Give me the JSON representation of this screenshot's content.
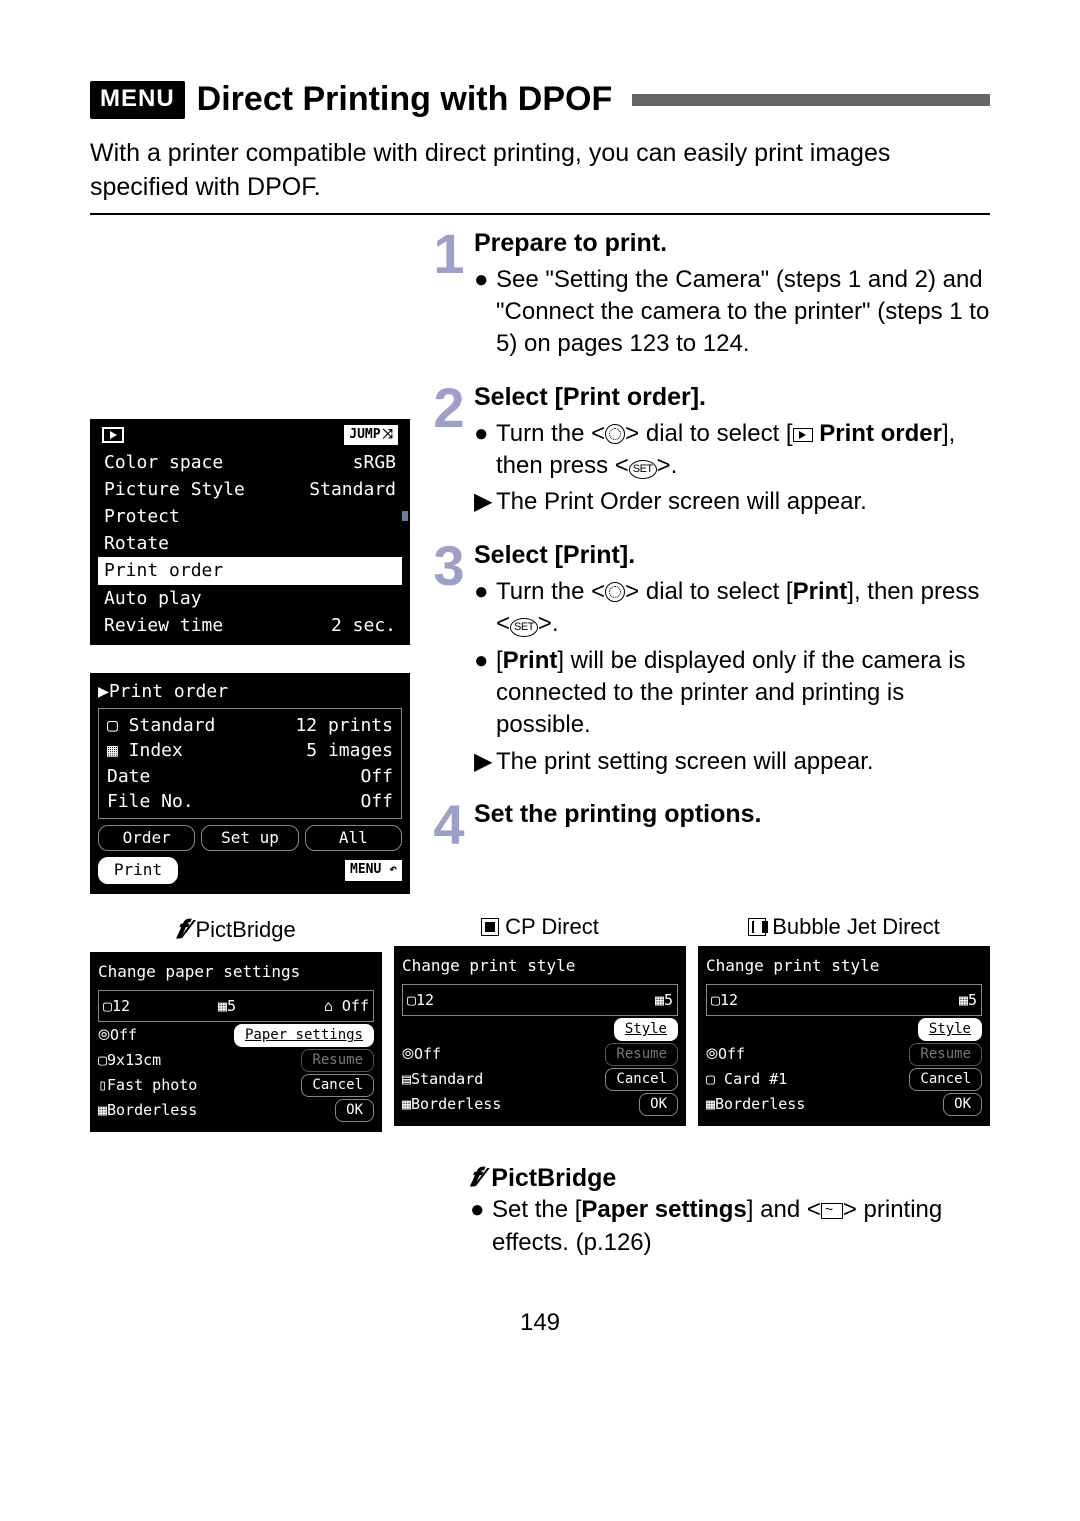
{
  "page_number": "149",
  "header": {
    "menu_label": "MENU",
    "title": "Direct Printing with DPOF"
  },
  "intro": "With a printer compatible with direct printing, you can easily print images specified with DPOF.",
  "steps": [
    {
      "num": "1",
      "title": "Prepare to print.",
      "items": [
        {
          "type": "dot",
          "text": "See \"Setting the Camera\" (steps 1 and 2) and \"Connect the camera to the printer\" (steps 1 to 5) on pages 123 to 124."
        }
      ]
    },
    {
      "num": "2",
      "title": "Select [Print order].",
      "items": [
        {
          "type": "dot",
          "html": "Turn the <<span class='circ-dial'></span>> dial to select [<span class='play-sq'></span> <b>Print order</b>], then press <<span class='set-icon'>SET</span>>."
        },
        {
          "type": "arrow",
          "text": "The Print Order screen will appear."
        }
      ]
    },
    {
      "num": "3",
      "title": "Select [Print].",
      "items": [
        {
          "type": "dot",
          "html": "Turn the <<span class='circ-dial'></span>> dial to select [<b>Print</b>], then press <<span class='set-icon'>SET</span>>."
        },
        {
          "type": "dot",
          "html": "[<b>Print</b>] will be displayed only if the camera is connected to the printer and printing is possible."
        },
        {
          "type": "arrow",
          "text": "The print setting screen will appear."
        }
      ]
    },
    {
      "num": "4",
      "title": "Set the printing options.",
      "items": []
    }
  ],
  "screen1": {
    "jump_label": "JUMP",
    "rows": [
      {
        "label": "Color space",
        "value": "sRGB"
      },
      {
        "label": "Picture Style",
        "value": "Standard"
      },
      {
        "label": "Protect",
        "value": ""
      },
      {
        "label": "Rotate",
        "value": ""
      },
      {
        "label": "Print order",
        "value": "",
        "highlight": true
      },
      {
        "label": "Auto play",
        "value": ""
      },
      {
        "label": "Review time",
        "value": "2 sec."
      }
    ]
  },
  "screen2": {
    "title": "Print order",
    "box_rows": [
      {
        "label": "▢ Standard",
        "value": "12 prints"
      },
      {
        "label": "▦ Index",
        "value": "5 images"
      },
      {
        "label": "  Date",
        "value": "Off"
      },
      {
        "label": "  File No.",
        "value": "Off"
      }
    ],
    "buttons": [
      "Order",
      "Set up",
      "All"
    ],
    "print_btn": "Print",
    "menu_label": "MENU"
  },
  "panels": [
    {
      "label": "PictBridge",
      "icon": "pb",
      "title": "Change paper settings",
      "box": [
        "▢12",
        "▦5",
        "⌂ Off"
      ],
      "rows": [
        {
          "left": "⦾Off",
          "btn": "Paper settings",
          "sel": true
        },
        {
          "left": "▢9x13cm",
          "btn": "Resume",
          "dim": true
        },
        {
          "left": "▯Fast photo",
          "btn": "Cancel"
        },
        {
          "left": "▦Borderless",
          "btn": "OK"
        }
      ]
    },
    {
      "label": "CP Direct",
      "icon": "cp",
      "title": "Change print style",
      "box": [
        "▢12",
        "▦5"
      ],
      "rows": [
        {
          "left": "",
          "btn": "Style",
          "sel": true
        },
        {
          "left": "⦾Off",
          "btn": "Resume",
          "dim": true
        },
        {
          "left": "▤Standard",
          "btn": "Cancel"
        },
        {
          "left": "▦Borderless",
          "btn": "OK"
        }
      ]
    },
    {
      "label": "Bubble Jet Direct",
      "icon": "bj",
      "title": "Change print style",
      "box": [
        "▢12",
        "▦5"
      ],
      "rows": [
        {
          "left": "",
          "btn": "Style",
          "sel": true
        },
        {
          "left": "⦾Off",
          "btn": "Resume",
          "dim": true
        },
        {
          "left": "▢ Card #1",
          "btn": "Cancel"
        },
        {
          "left": "▦Borderless",
          "btn": "OK"
        }
      ]
    }
  ],
  "pictbridge_section": {
    "title": "PictBridge",
    "bullet_html": "Set the [<b>Paper settings</b>] and <<span class='eff-icon'></span>> printing effects. (p.126)"
  }
}
